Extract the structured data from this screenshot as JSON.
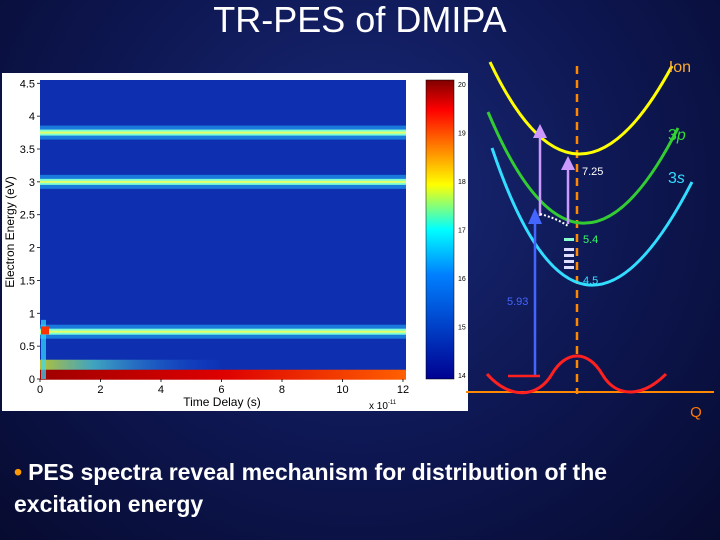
{
  "slide": {
    "title": "TR-PES of DMIPA",
    "bullet": "PES spectra reveal mechanism for distribution of the excitation energy"
  },
  "spectrum": {
    "ylabel": "Electron Energy (eV)",
    "xlabel": "Time Delay (s)",
    "x_multiplier": "x 10",
    "x_exponent": "-11",
    "x_ticks": [
      "0",
      "2",
      "4",
      "6",
      "8",
      "10",
      "12"
    ],
    "y_ticks": [
      "0",
      "0.5",
      "1",
      "1.5",
      "2",
      "2.5",
      "3",
      "3.5",
      "4",
      "4.5"
    ],
    "colorbar_ticks": [
      "20",
      "19",
      "18",
      "17",
      "16",
      "15",
      "14"
    ],
    "bright_bands_eV": [
      0.05,
      0.72,
      3.0,
      3.75
    ]
  },
  "energy_diagram": {
    "states": {
      "ion": "Ion",
      "p_prefix": "3",
      "p_orbital": "p",
      "s_prefix": "3",
      "s_orbital": "s"
    },
    "coordinate_label": "Q",
    "energies": {
      "e_725": "7.25",
      "e_54": "5.4",
      "e_45": "4.5",
      "e_593": "5.93"
    },
    "colors": {
      "ion": "#ffff00",
      "p3": "#33cc33",
      "s3": "#33ddff",
      "ground": "#ff2020",
      "dashed_axis": "#ff8800",
      "excitation": "#4466ff",
      "probe": "#cc99ff"
    }
  }
}
